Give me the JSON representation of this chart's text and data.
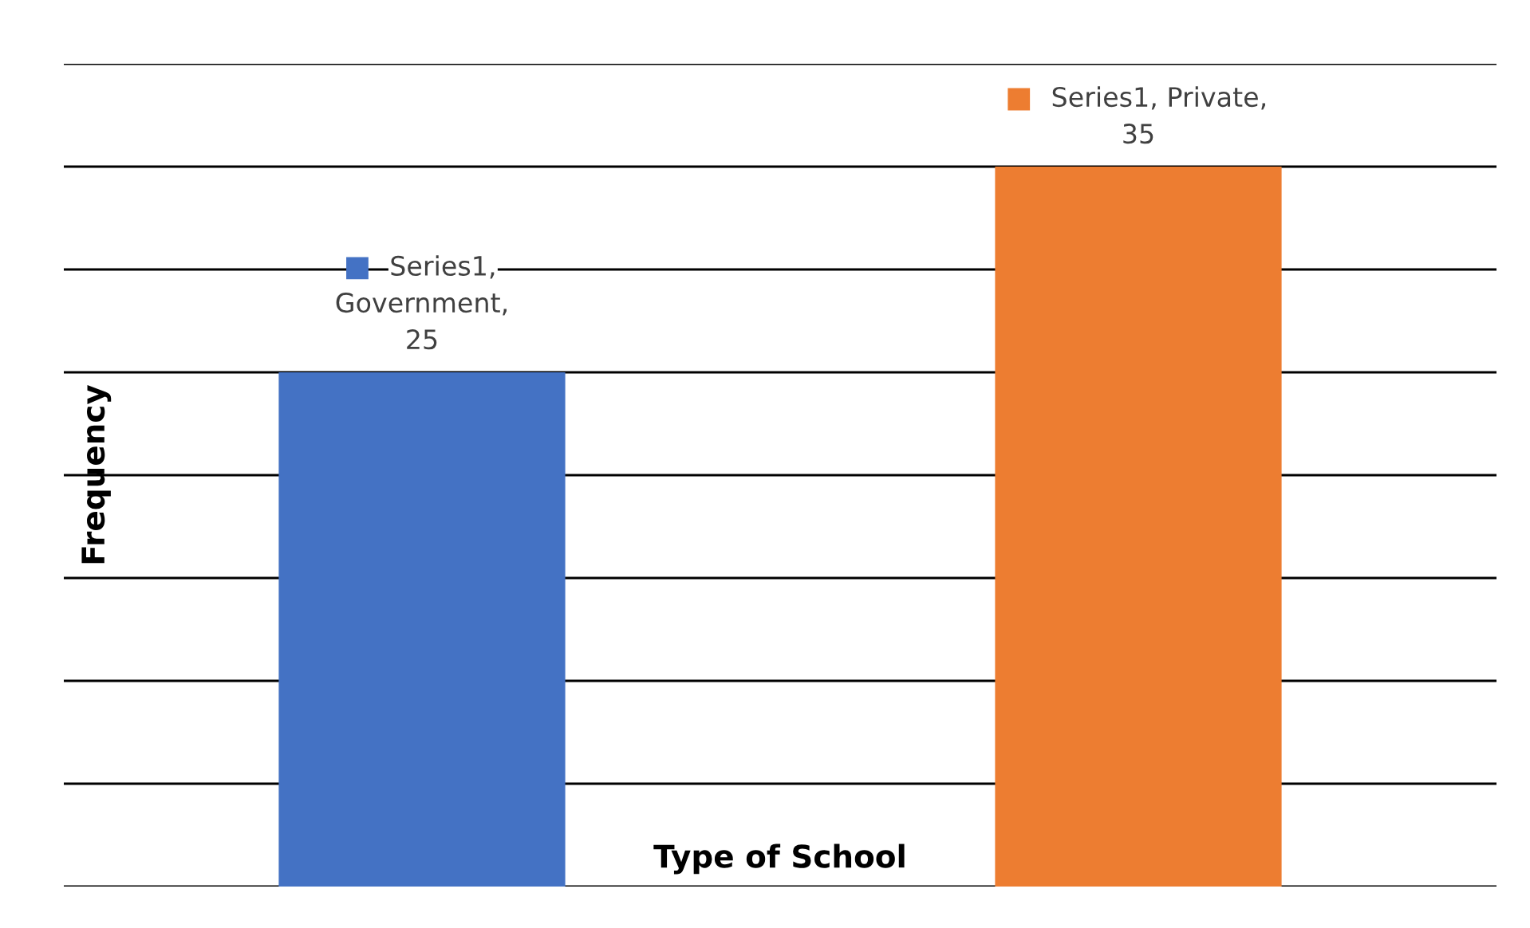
{
  "chart_data": {
    "type": "bar",
    "categories": [
      null,
      null
    ],
    "series": [
      {
        "colors": [
          "#4472c4",
          "#ed7d31"
        ],
        "values": [
          25,
          35
        ],
        "value_labels": [
          "Series1, Government, 25",
          "Series1, Private, 35"
        ]
      }
    ],
    "xlabel": "Type of School",
    "ylabel": "Frequency",
    "ylim": [
      0,
      40
    ],
    "yticks": [
      {
        "value": 0,
        "label": null
      },
      {
        "value": 5,
        "label": null
      },
      {
        "value": 10,
        "label": null
      },
      {
        "value": 15,
        "label": null
      },
      {
        "value": 20,
        "label": null
      },
      {
        "value": 25,
        "label": null
      },
      {
        "value": 30,
        "label": null
      },
      {
        "value": 35,
        "label": null
      },
      {
        "value": 40,
        "label": null
      }
    ],
    "grid": "y",
    "legend": false
  }
}
